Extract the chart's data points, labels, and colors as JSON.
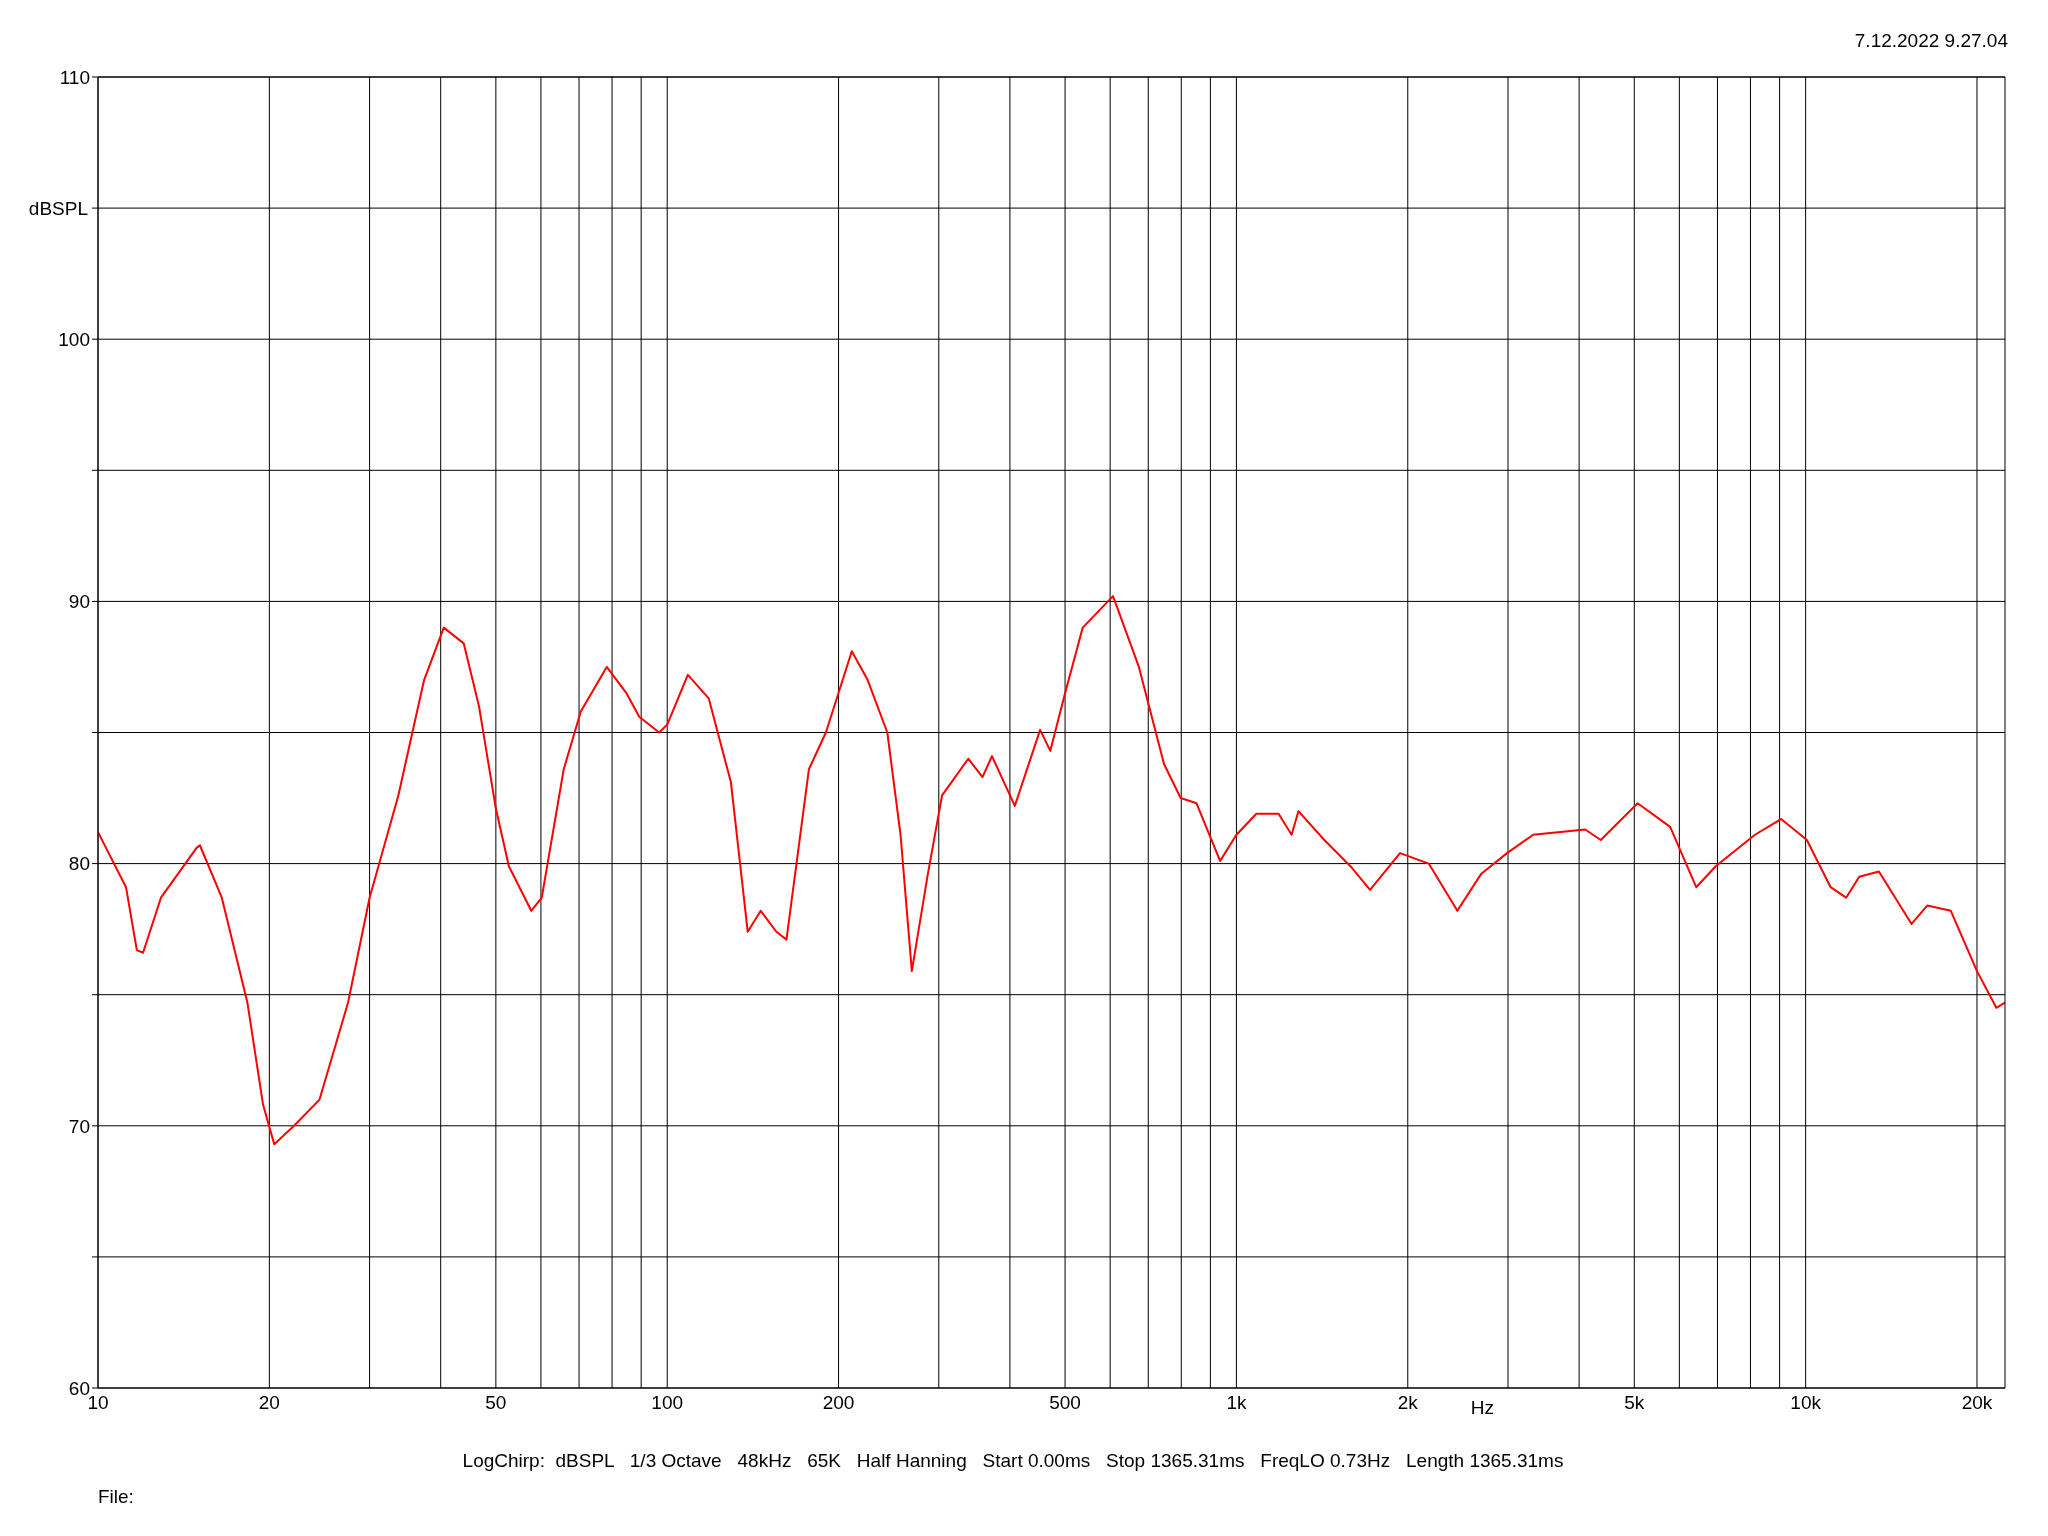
{
  "chart_data": {
    "type": "line",
    "xlabel": "Hz",
    "ylabel": "dBSPL",
    "annotations": [
      "7.12.2022 9.27.04",
      "LogChirp:  dBSPL   1/3 Octave   48kHz   65K   Half Hanning   Start 0.00ms   Stop 1365.31ms   FreqLO 0.73Hz   Length 1365.31ms",
      "File:"
    ],
    "log": "x",
    "grid": true,
    "legend": false,
    "marker": "none",
    "line_style": "solid",
    "xlim": [
      10,
      22400
    ],
    "ylim": [
      60,
      110
    ],
    "xticks": [
      {
        "value": 10,
        "label": "10"
      },
      {
        "value": 20,
        "label": "20"
      },
      {
        "value": 30,
        "label": null
      },
      {
        "value": 40,
        "label": null
      },
      {
        "value": 50,
        "label": "50"
      },
      {
        "value": 60,
        "label": null
      },
      {
        "value": 70,
        "label": null
      },
      {
        "value": 80,
        "label": null
      },
      {
        "value": 90,
        "label": null
      },
      {
        "value": 100,
        "label": "100"
      },
      {
        "value": 200,
        "label": "200"
      },
      {
        "value": 300,
        "label": null
      },
      {
        "value": 400,
        "label": null
      },
      {
        "value": 500,
        "label": "500"
      },
      {
        "value": 600,
        "label": null
      },
      {
        "value": 700,
        "label": null
      },
      {
        "value": 800,
        "label": null
      },
      {
        "value": 900,
        "label": null
      },
      {
        "value": 1000,
        "label": "1k"
      },
      {
        "value": 2000,
        "label": "2k"
      },
      {
        "value": 3000,
        "label": null
      },
      {
        "value": 4000,
        "label": null
      },
      {
        "value": 5000,
        "label": "5k"
      },
      {
        "value": 6000,
        "label": null
      },
      {
        "value": 7000,
        "label": null
      },
      {
        "value": 8000,
        "label": null
      },
      {
        "value": 9000,
        "label": null
      },
      {
        "value": 10000,
        "label": "10k"
      },
      {
        "value": 20000,
        "label": "20k"
      }
    ],
    "yticks": [
      60,
      {
        "value": 65,
        "label": null
      },
      70,
      {
        "value": 75,
        "label": null
      },
      80,
      {
        "value": 85,
        "label": null
      },
      90,
      {
        "value": 95,
        "label": null
      },
      100,
      {
        "value": 105,
        "label": null
      },
      110
    ],
    "series": [
      {
        "color": "#ff0000",
        "x": [
          10,
          11.2,
          11.7,
          12.0,
          12.9,
          14.9,
          15.1,
          16.5,
          18.3,
          19.5,
          20.4,
          22.1,
          24.5,
          27.5,
          30,
          33.7,
          37.4,
          40.5,
          43.9,
          46.7,
          50,
          52.7,
          57.7,
          60.2,
          65.8,
          70.5,
          78.3,
          84.8,
          89.3,
          96.8,
          100,
          108.7,
          118.3,
          129.4,
          138.5,
          146,
          155.5,
          162,
          177.4,
          190,
          211,
          225,
          243.6,
          257,
          269,
          287,
          304,
          338,
          358,
          372,
          408,
          452,
          471,
          500,
          537,
          607,
          674,
          746,
          798,
          851,
          936,
          1000,
          1084,
          1186,
          1250,
          1285,
          1427,
          1586,
          1717,
          1938,
          2177,
          2444,
          2690,
          2988,
          3321,
          4100,
          4366,
          5068,
          5781,
          6424,
          6950,
          8147,
          9058,
          10050,
          11064,
          11780,
          12420,
          13450,
          15350,
          16350,
          17990,
          20000,
          21630,
          22400
        ],
        "values": [
          81.2,
          79.1,
          76.7,
          76.6,
          78.7,
          80.6,
          80.7,
          78.7,
          74.7,
          70.8,
          69.3,
          70.0,
          71.0,
          74.7,
          78.7,
          82.6,
          87.0,
          89.0,
          88.4,
          86.0,
          82.1,
          79.9,
          78.2,
          78.7,
          83.6,
          85.8,
          87.5,
          86.5,
          85.6,
          85.0,
          85.3,
          87.2,
          86.3,
          83.1,
          77.4,
          78.2,
          77.4,
          77.1,
          83.6,
          85.0,
          88.1,
          87.0,
          85.0,
          81.1,
          75.9,
          79.6,
          82.6,
          84.0,
          83.3,
          84.1,
          82.2,
          85.1,
          84.3,
          86.5,
          89.0,
          90.2,
          87.5,
          83.8,
          82.5,
          82.3,
          80.1,
          81.1,
          81.9,
          81.9,
          81.1,
          82.0,
          80.9,
          79.9,
          79.0,
          80.4,
          80.0,
          78.2,
          79.6,
          80.4,
          81.1,
          81.3,
          80.9,
          82.3,
          81.4,
          79.1,
          79.9,
          81.1,
          81.7,
          80.9,
          79.1,
          78.7,
          79.5,
          79.7,
          77.7,
          78.4,
          78.2,
          75.9,
          74.5,
          74.7
        ]
      }
    ]
  }
}
